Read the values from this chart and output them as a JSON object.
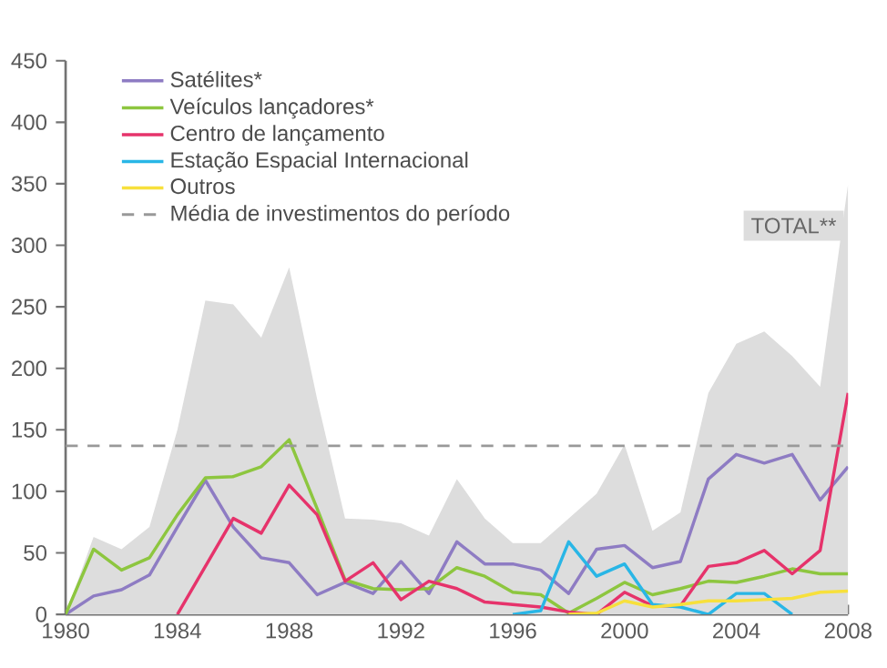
{
  "chart_data": {
    "type": "line",
    "x": [
      1980,
      1981,
      1982,
      1983,
      1984,
      1985,
      1986,
      1987,
      1988,
      1989,
      1990,
      1991,
      1992,
      1993,
      1994,
      1995,
      1996,
      1997,
      1998,
      1999,
      2000,
      2001,
      2002,
      2003,
      2004,
      2005,
      2006,
      2007,
      2008
    ],
    "series": [
      {
        "name": "TOTAL**",
        "type": "area",
        "color": "#dddddd",
        "values": [
          0,
          63,
          53,
          71,
          150,
          255,
          252,
          225,
          282,
          175,
          78,
          77,
          74,
          64,
          110,
          78,
          58,
          58,
          78,
          98,
          138,
          68,
          83,
          180,
          220,
          230,
          210,
          185,
          350
        ]
      },
      {
        "name": "Satélites*",
        "color": "#8e7cc3",
        "values": [
          0,
          15,
          20,
          32,
          71,
          109,
          71,
          46,
          42,
          16,
          26,
          17,
          43,
          17,
          59,
          41,
          41,
          36,
          17,
          53,
          56,
          38,
          43,
          110,
          130,
          123,
          130,
          93,
          120
        ]
      },
      {
        "name": "Veículos lançadores*",
        "color": "#8dc63f",
        "values": [
          0,
          53,
          36,
          46,
          81,
          111,
          112,
          120,
          142,
          86,
          28,
          21,
          20,
          21,
          38,
          31,
          18,
          16,
          1,
          13,
          26,
          16,
          21,
          27,
          26,
          31,
          37,
          33,
          33
        ]
      },
      {
        "name": "Centro de lançamento",
        "color": "#e6336b",
        "values": [
          null,
          null,
          null,
          null,
          0,
          39,
          78,
          66,
          105,
          81,
          27,
          42,
          12,
          27,
          21,
          10,
          8,
          6,
          2,
          0,
          18,
          7,
          7,
          39,
          42,
          52,
          33,
          52,
          180
        ]
      },
      {
        "name": "Estação Espacial Internacional",
        "color": "#29b6e6",
        "values": [
          null,
          null,
          null,
          null,
          null,
          null,
          null,
          null,
          null,
          null,
          null,
          null,
          null,
          null,
          null,
          null,
          0,
          3,
          59,
          31,
          41,
          8,
          6,
          0,
          17,
          17,
          0,
          null,
          null
        ]
      },
      {
        "name": "Outros",
        "color": "#f7e03c",
        "values": [
          null,
          null,
          null,
          null,
          null,
          null,
          null,
          null,
          null,
          null,
          null,
          null,
          null,
          null,
          null,
          null,
          null,
          null,
          0,
          1,
          11,
          6,
          8,
          11,
          11,
          12,
          13,
          18,
          19
        ]
      }
    ],
    "xlim": [
      1980,
      2008
    ],
    "xticks": [
      1980,
      1984,
      1988,
      1992,
      1996,
      2000,
      2004,
      2008
    ],
    "ylim": [
      0,
      450
    ],
    "yticks": [
      0,
      50,
      100,
      150,
      200,
      250,
      300,
      350,
      400,
      450
    ],
    "ref_lines": [
      {
        "axis": "y",
        "value": 137,
        "label": "Média de investimentos do período",
        "color": "#999999",
        "line_style": "dashed"
      }
    ],
    "legend": "top left",
    "grid": false,
    "line_style": "solid"
  }
}
